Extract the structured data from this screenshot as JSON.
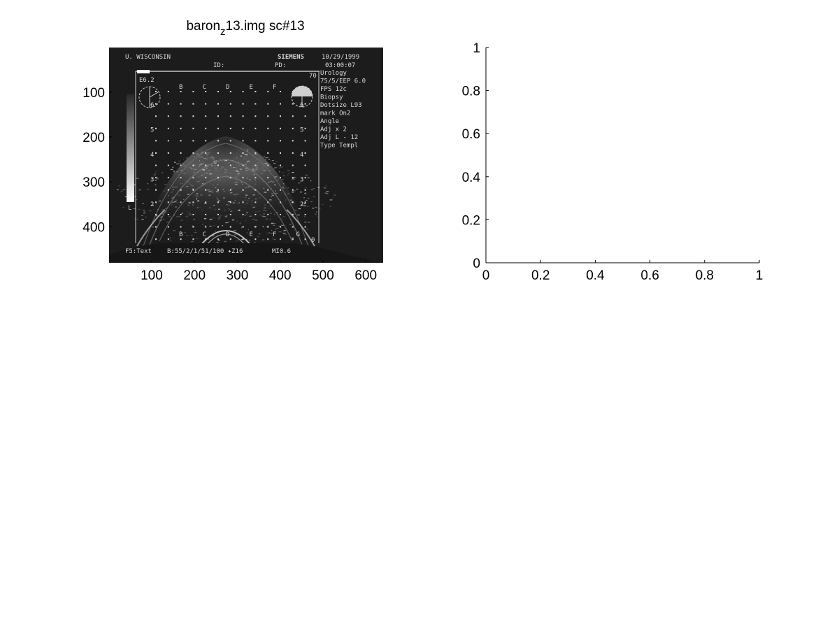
{
  "chart_data": [
    {
      "type": "image",
      "title_base": "baron",
      "title_sub": "z",
      "title_rest": "13.img sc#13",
      "x_ticks": [
        100,
        200,
        300,
        400,
        500,
        600
      ],
      "y_ticks": [
        100,
        200,
        300,
        400
      ],
      "xlim": [
        0.5,
        640.5
      ],
      "ylim": [
        0.5,
        480.5
      ],
      "y_reversed": true,
      "image_text": {
        "institution": "U. WISCONSIN",
        "brand": "SIEMENS",
        "date": "10/29/1999",
        "time": "03:00:07",
        "id_label": "ID:",
        "pd_label": "PD:",
        "depth_value": "E6.2",
        "top_right_value": "70",
        "bottom_right_value": "0",
        "gray_bar_label": "L",
        "column_letters_top": [
          "B",
          "C",
          "D",
          "E",
          "F"
        ],
        "column_letters_bottom": [
          "B",
          "C",
          "D",
          "E",
          "F",
          "G"
        ],
        "row_numbers": [
          "6",
          "5",
          "4",
          "3",
          "2"
        ],
        "side_menu": [
          "Urology",
          "75/5/EEP 6.0",
          "FPS      12c",
          "Biopsy",
          " Dotsize L93",
          " mark   On2",
          " Angle",
          " Adj x      2",
          " Adj L    - 12",
          " Type Templ"
        ],
        "footer_left": "F5:Text",
        "footer_mid": "B:55/2/1/51/100 ✦Z16",
        "footer_right": "MI0.6"
      }
    },
    {
      "type": "line",
      "series": [],
      "x_ticks": [
        "0",
        "0.2",
        "0.4",
        "0.6",
        "0.8",
        "1"
      ],
      "y_ticks": [
        "0",
        "0.2",
        "0.4",
        "0.6",
        "0.8",
        "1"
      ],
      "xlim": [
        0,
        1
      ],
      "ylim": [
        0,
        1
      ]
    }
  ]
}
